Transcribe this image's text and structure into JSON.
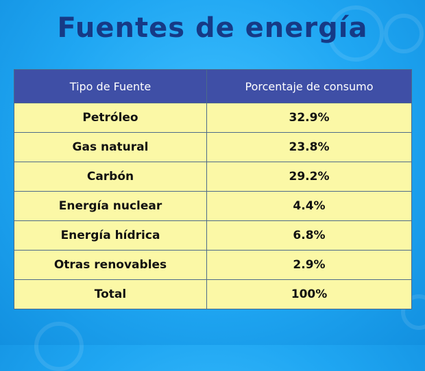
{
  "title": "Fuentes de energía",
  "colors": {
    "background": "#1fa6f2",
    "title": "#163a86",
    "header_bg": "#3f4fa6",
    "header_text": "#ffffff",
    "cell_bg": "#fbf8a6",
    "border": "#4c6a8a"
  },
  "chart_data": {
    "type": "table",
    "title": "Fuentes de energía",
    "columns": [
      "Tipo de Fuente",
      "Porcentaje de consumo"
    ],
    "rows": [
      [
        "Petróleo",
        "32.9%"
      ],
      [
        "Gas natural",
        "23.8%"
      ],
      [
        "Carbón",
        "29.2%"
      ],
      [
        "Energía nuclear",
        "4.4%"
      ],
      [
        "Energía hídrica",
        "6.8%"
      ],
      [
        "Otras renovables",
        "2.9%"
      ],
      [
        "Total",
        "100%"
      ]
    ]
  }
}
